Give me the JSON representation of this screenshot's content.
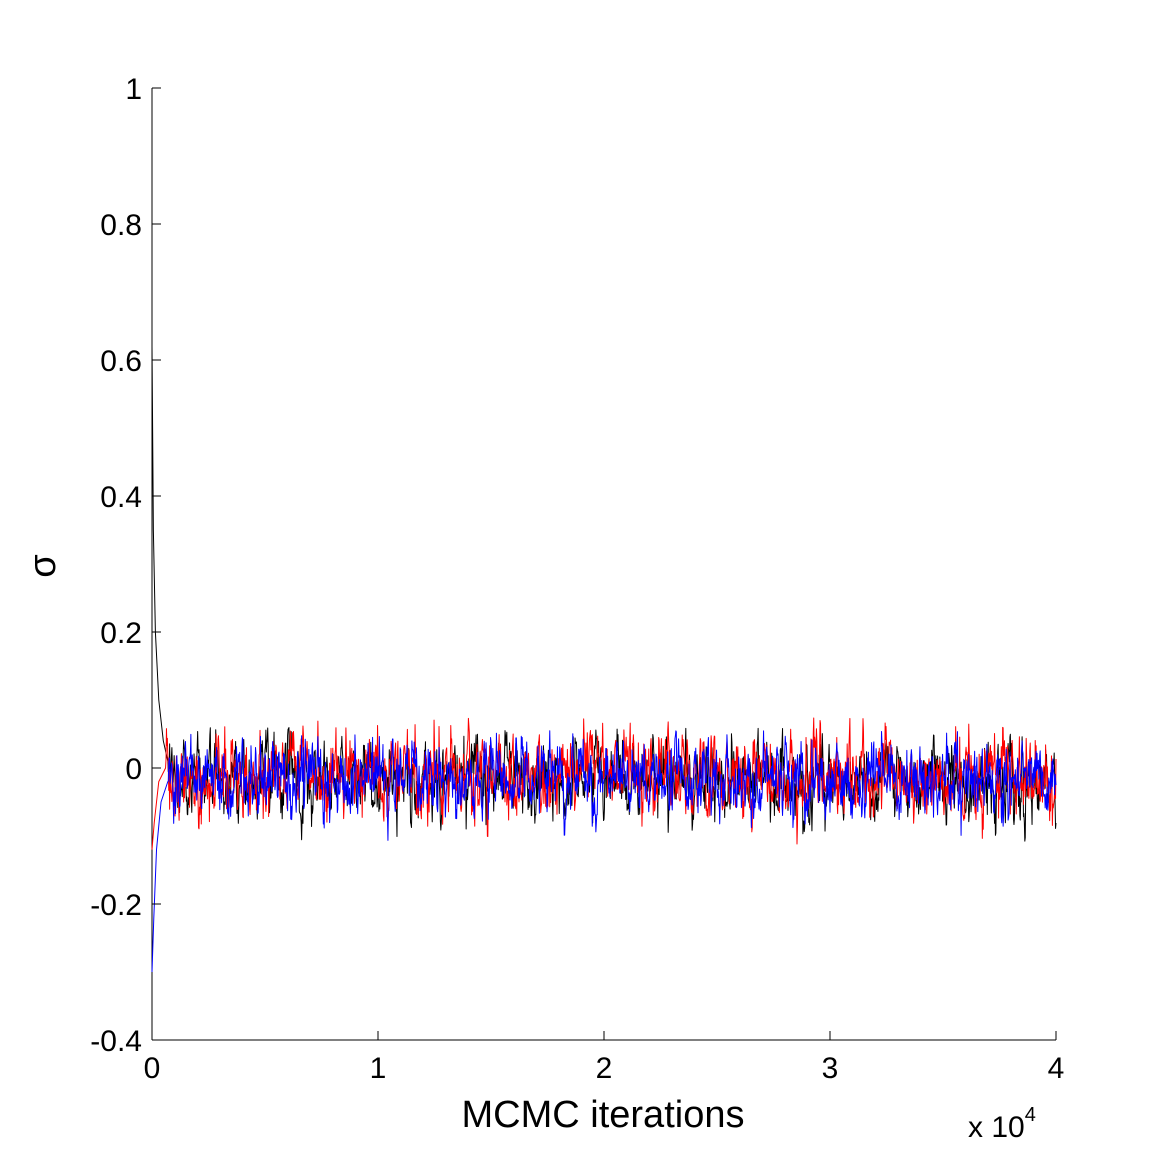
{
  "chart_data": {
    "type": "line",
    "title": "",
    "xlabel": "MCMC iterations",
    "ylabel": "σ",
    "x_multiplier_label": "x 10",
    "x_multiplier_exponent": "4",
    "xlim": [
      0,
      40000
    ],
    "ylim": [
      -0.4,
      1
    ],
    "xticks": [
      0,
      1,
      2,
      3,
      4
    ],
    "yticks": [
      -0.4,
      -0.2,
      0,
      0.2,
      0.4,
      0.6,
      0.8,
      1
    ],
    "grid": false,
    "legend": "none",
    "series": [
      {
        "color": "#000000",
        "start_value": 0.62,
        "burn_in_values": [
          [
            0,
            0.62
          ],
          [
            60,
            0.35
          ],
          [
            150,
            0.2
          ],
          [
            300,
            0.1
          ],
          [
            500,
            0.04
          ],
          [
            700,
            0.01
          ]
        ],
        "stationary_mean": -0.015,
        "stationary_range": [
          -0.115,
          0.06
        ]
      },
      {
        "color": "#ff0000",
        "start_value": -0.12,
        "burn_in_values": [
          [
            0,
            -0.12
          ],
          [
            100,
            -0.08
          ],
          [
            300,
            -0.02
          ],
          [
            600,
            0.0
          ]
        ],
        "stationary_mean": -0.01,
        "stationary_range": [
          -0.115,
          0.075
        ]
      },
      {
        "color": "#0000ff",
        "start_value": -0.3,
        "burn_in_values": [
          [
            0,
            -0.3
          ],
          [
            80,
            -0.22
          ],
          [
            200,
            -0.12
          ],
          [
            400,
            -0.05
          ],
          [
            700,
            -0.02
          ]
        ],
        "stationary_mean": -0.015,
        "stationary_range": [
          -0.11,
          0.055
        ]
      }
    ]
  }
}
